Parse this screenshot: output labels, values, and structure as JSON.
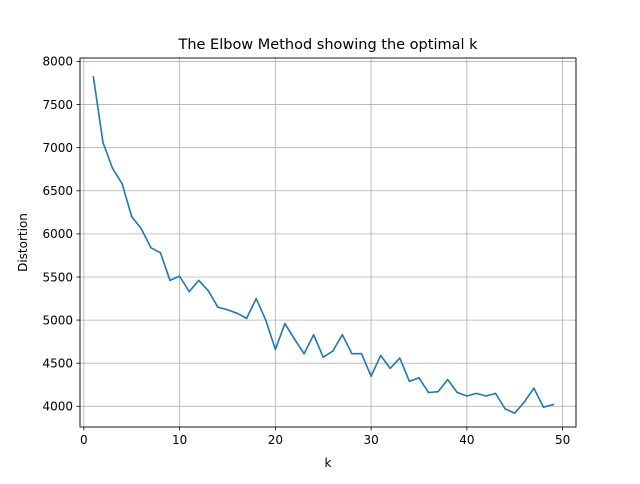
{
  "chart_data": {
    "type": "line",
    "title": "The Elbow Method showing the optimal k",
    "xlabel": "k",
    "ylabel": "Distortion",
    "xlim": [
      -0.4,
      51.4
    ],
    "ylim": [
      3760,
      8040
    ],
    "xticks": [
      0,
      10,
      20,
      30,
      40,
      50
    ],
    "yticks": [
      4000,
      4500,
      5000,
      5500,
      6000,
      6500,
      7000,
      7500,
      8000
    ],
    "grid": true,
    "series": [
      {
        "color": "#1f77b4",
        "x": [
          1,
          2,
          3,
          4,
          5,
          6,
          7,
          8,
          9,
          10,
          11,
          12,
          13,
          14,
          15,
          16,
          17,
          18,
          19,
          20,
          21,
          22,
          23,
          24,
          25,
          26,
          27,
          28,
          29,
          30,
          31,
          32,
          33,
          34,
          35,
          36,
          37,
          38,
          39,
          40,
          41,
          42,
          43,
          44,
          45,
          46,
          47,
          48,
          49
        ],
        "values": [
          7820,
          7060,
          6760,
          6580,
          6200,
          6060,
          5840,
          5780,
          5460,
          5510,
          5330,
          5460,
          5340,
          5150,
          5120,
          5080,
          5020,
          5250,
          5000,
          4660,
          4960,
          4780,
          4610,
          4830,
          4570,
          4640,
          4830,
          4610,
          4610,
          4350,
          4590,
          4440,
          4560,
          4290,
          4330,
          4160,
          4170,
          4310,
          4160,
          4120,
          4150,
          4120,
          4150,
          3970,
          3920,
          4050,
          4210,
          3990,
          4020
        ]
      }
    ]
  }
}
